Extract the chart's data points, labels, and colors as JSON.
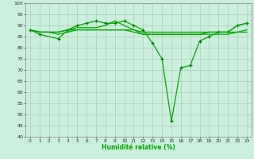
{
  "xlabel": "Humidité relative (%)",
  "bg_color": "#cceedd",
  "grid_color": "#aaccbb",
  "line_color": "#00aa00",
  "marker_color": "#007700",
  "xlim": [
    -0.5,
    23.5
  ],
  "ylim": [
    40,
    100
  ],
  "yticks": [
    40,
    45,
    50,
    55,
    60,
    65,
    70,
    75,
    80,
    85,
    90,
    95,
    100
  ],
  "xticks": [
    0,
    1,
    2,
    3,
    4,
    5,
    6,
    7,
    8,
    9,
    10,
    11,
    12,
    13,
    14,
    15,
    16,
    17,
    18,
    19,
    20,
    21,
    22,
    23
  ],
  "lines": [
    {
      "x": [
        0,
        1,
        3,
        4,
        5,
        6,
        7,
        8,
        9,
        10,
        11,
        12,
        13,
        14,
        15,
        16,
        17,
        18,
        19,
        20,
        21,
        22,
        23
      ],
      "y": [
        88,
        86,
        84,
        88,
        90,
        91,
        92,
        91,
        91,
        92,
        90,
        88,
        82,
        75,
        47,
        71,
        72,
        83,
        85,
        87,
        87,
        90,
        91
      ],
      "marker": true
    },
    {
      "x": [
        0,
        1,
        2,
        3,
        4,
        5,
        6,
        7,
        8,
        9,
        10,
        11,
        12,
        13,
        14,
        15,
        16,
        17,
        18,
        19,
        20,
        21,
        22,
        23
      ],
      "y": [
        88,
        87,
        87,
        87,
        88,
        88,
        88,
        88,
        88,
        88,
        88,
        88,
        87,
        87,
        87,
        87,
        87,
        87,
        87,
        87,
        87,
        87,
        87,
        87
      ],
      "marker": false
    },
    {
      "x": [
        0,
        1,
        2,
        3,
        4,
        5,
        6,
        7,
        8,
        9,
        10,
        11,
        12,
        13,
        14,
        15,
        16,
        17,
        18,
        19,
        20,
        21,
        22,
        23
      ],
      "y": [
        88,
        87,
        87,
        87,
        88,
        89,
        89,
        89,
        90,
        92,
        90,
        88,
        86,
        86,
        86,
        86,
        86,
        86,
        86,
        87,
        87,
        87,
        90,
        91
      ],
      "marker": false
    },
    {
      "x": [
        0,
        1,
        2,
        3,
        4,
        5,
        6,
        7,
        8,
        9,
        10,
        11,
        12,
        13,
        14,
        15,
        16,
        17,
        18,
        19,
        20,
        21,
        22,
        23
      ],
      "y": [
        88,
        87,
        87,
        86,
        87,
        88,
        88,
        88,
        88,
        88,
        88,
        87,
        86,
        86,
        86,
        86,
        86,
        86,
        86,
        86,
        86,
        86,
        87,
        88
      ],
      "marker": false
    }
  ]
}
